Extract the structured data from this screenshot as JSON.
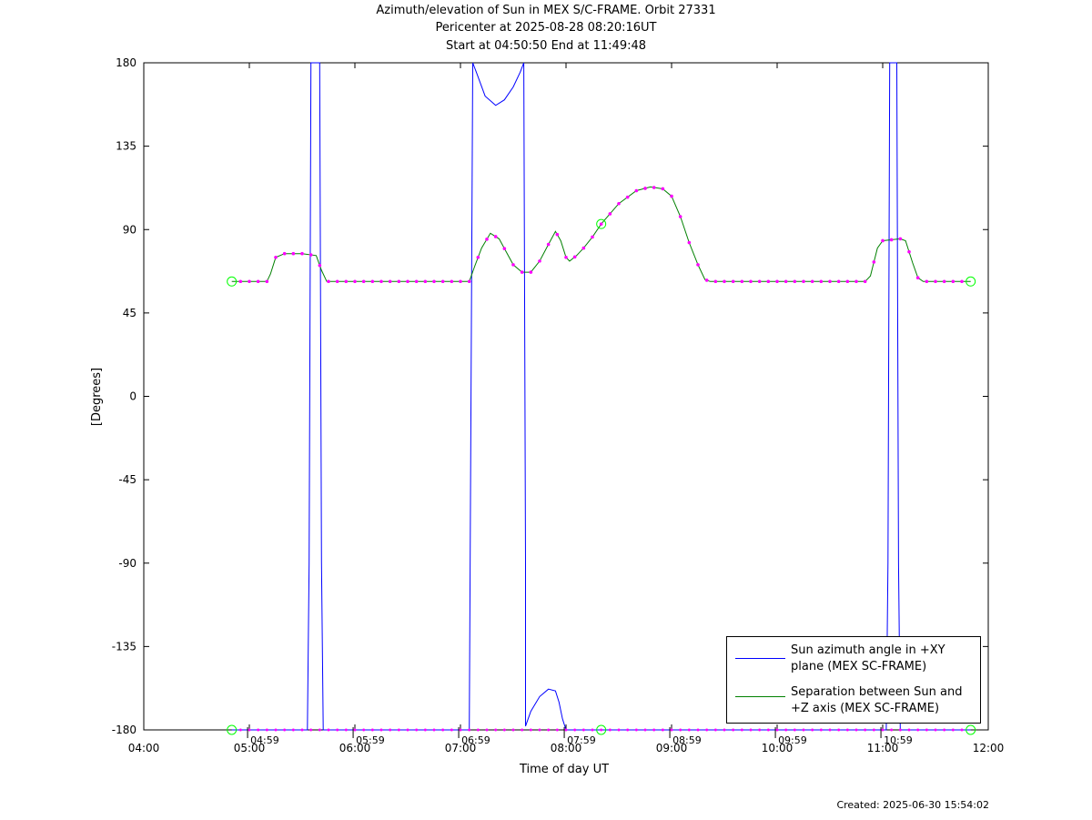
{
  "title": {
    "line1": "Azimuth/elevation of Sun in MEX S/C-FRAME.  Orbit 27331",
    "line2": "Pericenter at 2025-08-28 08:20:16UT",
    "line3": "Start at 04:50:50 End at 11:49:48"
  },
  "created": "Created: 2025-06-30 15:54:02",
  "chart_data": {
    "type": "line",
    "title": "Azimuth/elevation of Sun in MEX S/C-FRAME.  Orbit 27331",
    "xlabel": "Time of day UT",
    "ylabel": "[Degrees]",
    "xlim": [
      "04:00",
      "12:00"
    ],
    "ylim": [
      -180,
      180
    ],
    "x_ticks": [
      "04:00",
      "05:00",
      "06:00",
      "07:00",
      "08:00",
      "09:00",
      "10:00",
      "11:00",
      "12:00"
    ],
    "y_ticks": [
      180,
      135,
      90,
      45,
      0,
      -45,
      -90,
      -135,
      -180
    ],
    "grid": false,
    "legend_position": "bottom-right",
    "colors": {
      "azimuth": "#0000ff",
      "separation": "#008000",
      "markers": "#ff00ff",
      "circles": "#00ff00"
    },
    "hour_markers": [
      "04:59",
      "05:59",
      "06:59",
      "07:59",
      "08:59",
      "09:59",
      "10:59"
    ],
    "series": [
      {
        "name": "Sun azimuth angle in +XY\nplane (MEX SC-FRAME)",
        "color": "#0000ff",
        "points": [
          [
            "04:50",
            -180
          ],
          [
            "05:33",
            -180
          ],
          [
            "05:34",
            -90
          ],
          [
            "05:35",
            180
          ],
          [
            "05:40",
            180
          ],
          [
            "05:41",
            -90
          ],
          [
            "05:42",
            -180
          ],
          [
            "07:05",
            -180
          ],
          [
            "07:06",
            0
          ],
          [
            "07:07",
            180
          ],
          [
            "07:09",
            175
          ],
          [
            "07:14",
            162
          ],
          [
            "07:20",
            157
          ],
          [
            "07:25",
            160
          ],
          [
            "07:30",
            167
          ],
          [
            "07:34",
            175
          ],
          [
            "07:36",
            180
          ],
          [
            "07:37",
            -90
          ],
          [
            "07:37",
            -178
          ],
          [
            "07:40",
            -170
          ],
          [
            "07:45",
            -162
          ],
          [
            "07:50",
            -158
          ],
          [
            "07:54",
            -159
          ],
          [
            "07:56",
            -165
          ],
          [
            "07:58",
            -174
          ],
          [
            "08:00",
            -180
          ],
          [
            "11:02",
            -180
          ],
          [
            "11:03",
            -90
          ],
          [
            "11:04",
            180
          ],
          [
            "11:08",
            180
          ],
          [
            "11:09",
            -90
          ],
          [
            "11:10",
            -180
          ],
          [
            "11:50",
            -180
          ]
        ]
      },
      {
        "name": "Separation between Sun and\n+Z axis (MEX SC-FRAME)",
        "color": "#008000",
        "points": [
          [
            "04:50",
            62
          ],
          [
            "05:10",
            62
          ],
          [
            "05:12",
            66
          ],
          [
            "05:15",
            75
          ],
          [
            "05:20",
            77
          ],
          [
            "05:30",
            77
          ],
          [
            "05:38",
            76
          ],
          [
            "05:41",
            68
          ],
          [
            "05:44",
            62
          ],
          [
            "07:05",
            62
          ],
          [
            "07:08",
            70
          ],
          [
            "07:12",
            80
          ],
          [
            "07:17",
            88
          ],
          [
            "07:22",
            85
          ],
          [
            "07:26",
            78
          ],
          [
            "07:30",
            71
          ],
          [
            "07:35",
            67
          ],
          [
            "07:40",
            67
          ],
          [
            "07:45",
            73
          ],
          [
            "07:50",
            82
          ],
          [
            "07:54",
            89
          ],
          [
            "07:57",
            84
          ],
          [
            "08:00",
            75
          ],
          [
            "08:02",
            73
          ],
          [
            "08:06",
            76
          ],
          [
            "08:10",
            80
          ],
          [
            "08:15",
            86
          ],
          [
            "08:20",
            93
          ],
          [
            "08:30",
            104
          ],
          [
            "08:40",
            111
          ],
          [
            "08:48",
            113
          ],
          [
            "08:55",
            112
          ],
          [
            "09:00",
            108
          ],
          [
            "09:05",
            97
          ],
          [
            "09:10",
            83
          ],
          [
            "09:15",
            71
          ],
          [
            "09:19",
            63
          ],
          [
            "09:22",
            62
          ],
          [
            "10:50",
            62
          ],
          [
            "10:53",
            65
          ],
          [
            "10:57",
            80
          ],
          [
            "11:00",
            84
          ],
          [
            "11:10",
            85
          ],
          [
            "11:13",
            84
          ],
          [
            "11:17",
            72
          ],
          [
            "11:20",
            64
          ],
          [
            "11:23",
            62
          ],
          [
            "11:50",
            62
          ]
        ]
      }
    ]
  }
}
